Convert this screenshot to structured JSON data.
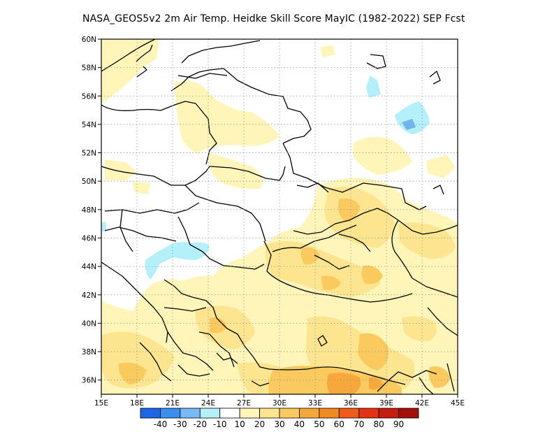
{
  "title": "NASA_GEOS5v2  2m Air Temp. Heidke Skill Score MayIC (1982-2022) SEP Fcst",
  "map": {
    "lon_range": [
      15,
      45
    ],
    "lat_range": [
      35,
      60
    ],
    "lon_ticks": [
      {
        "value": 15,
        "label": "15E"
      },
      {
        "value": 18,
        "label": "18E"
      },
      {
        "value": 21,
        "label": "21E"
      },
      {
        "value": 24,
        "label": "24E"
      },
      {
        "value": 27,
        "label": "27E"
      },
      {
        "value": 30,
        "label": "30E"
      },
      {
        "value": 33,
        "label": "33E"
      },
      {
        "value": 36,
        "label": "36E"
      },
      {
        "value": 39,
        "label": "39E"
      },
      {
        "value": 42,
        "label": "42E"
      },
      {
        "value": 45,
        "label": "45E"
      }
    ],
    "lat_ticks": [
      {
        "value": 36,
        "label": "36N"
      },
      {
        "value": 38,
        "label": "38N"
      },
      {
        "value": 40,
        "label": "40N"
      },
      {
        "value": 42,
        "label": "42N"
      },
      {
        "value": 44,
        "label": "44N"
      },
      {
        "value": 46,
        "label": "46N"
      },
      {
        "value": 48,
        "label": "48N"
      },
      {
        "value": 50,
        "label": "50N"
      },
      {
        "value": 52,
        "label": "52N"
      },
      {
        "value": 54,
        "label": "54N"
      },
      {
        "value": 56,
        "label": "56N"
      },
      {
        "value": 58,
        "label": "58N"
      },
      {
        "value": 60,
        "label": "60N"
      }
    ],
    "grid": true,
    "fill_colors": {
      "10-20": "#fff5b8",
      "20-30": "#fde58f",
      "30-40": "#fbca5e",
      "40-50": "#f6a93a",
      "neg-10": "#b4f0fa",
      "neg-20": "#96d2fa",
      "neg-30": "#6eb4f0"
    }
  },
  "colorbar": {
    "bins": [
      {
        "color": "#1f66e6"
      },
      {
        "color": "#3a8ef0"
      },
      {
        "color": "#78b8f5"
      },
      {
        "color": "#b4f0fa"
      },
      {
        "color": "#ffffff"
      },
      {
        "color": "#fff5b8"
      },
      {
        "color": "#fde58f"
      },
      {
        "color": "#fbca5e"
      },
      {
        "color": "#f6a93a"
      },
      {
        "color": "#f38a1f"
      },
      {
        "color": "#f05a18"
      },
      {
        "color": "#e43313"
      },
      {
        "color": "#c61c0c"
      },
      {
        "color": "#a50f08"
      }
    ],
    "labels": [
      {
        "text": "-40",
        "after_bin": 1
      },
      {
        "text": "-30",
        "after_bin": 2
      },
      {
        "text": "-20",
        "after_bin": 3
      },
      {
        "text": "-10",
        "after_bin": 4
      },
      {
        "text": "10",
        "after_bin": 5
      },
      {
        "text": "20",
        "after_bin": 6
      },
      {
        "text": "30",
        "after_bin": 7
      },
      {
        "text": "40",
        "after_bin": 8
      },
      {
        "text": "50",
        "after_bin": 9
      },
      {
        "text": "60",
        "after_bin": 10
      },
      {
        "text": "70",
        "after_bin": 11
      },
      {
        "text": "80",
        "after_bin": 12
      },
      {
        "text": "90",
        "after_bin": 13
      }
    ]
  }
}
